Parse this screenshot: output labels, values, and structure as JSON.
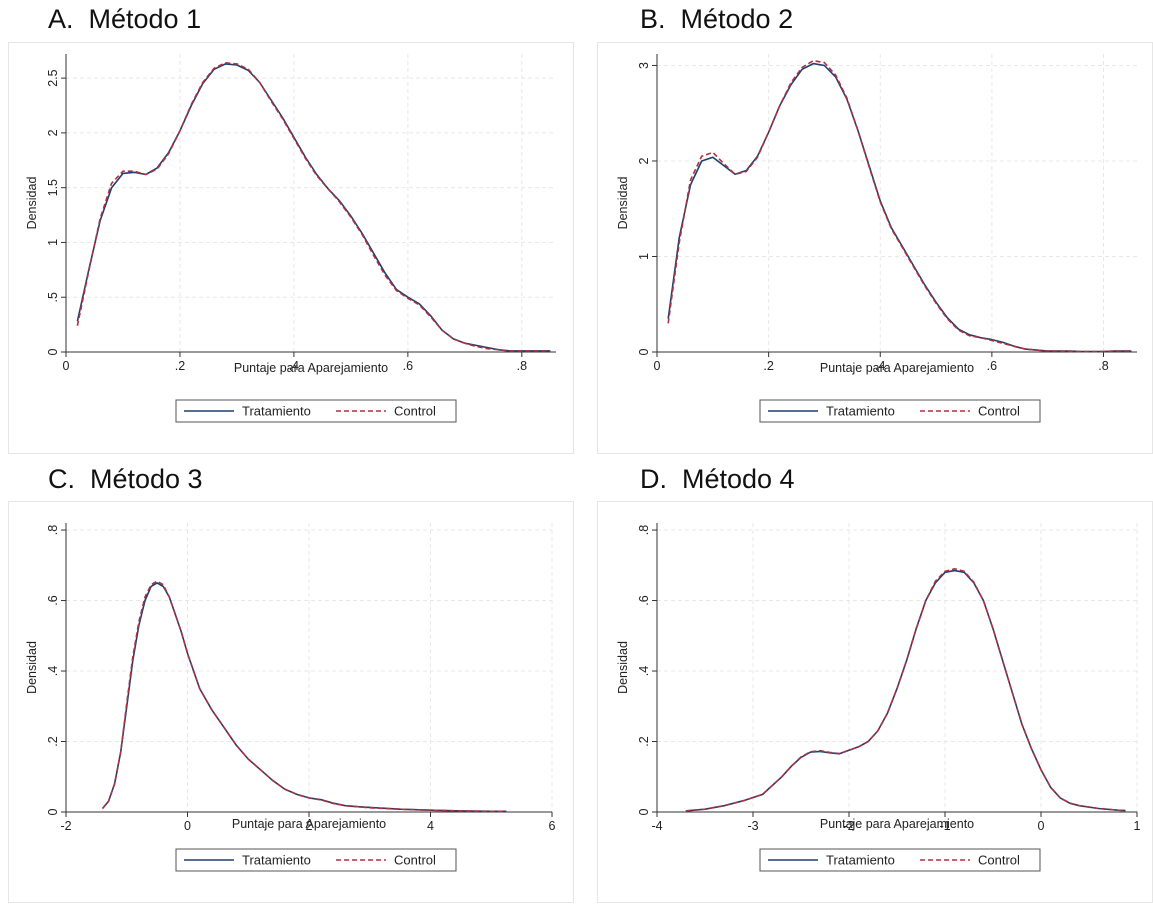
{
  "colors": {
    "treatment": "#1f3f6e",
    "control": "#b0303f"
  },
  "chart_data": [
    {
      "type": "line",
      "title": "A.  Método 1",
      "xlabel": "Puntaje para Aparejamiento",
      "ylabel": "Densidad",
      "xlim": [
        0,
        0.86
      ],
      "ylim": [
        0,
        2.72
      ],
      "xticks": [
        0,
        0.2,
        0.4,
        0.6,
        0.8
      ],
      "xtick_labels": [
        "0",
        ".2",
        ".4",
        ".6",
        ".8"
      ],
      "yticks": [
        0,
        0.5,
        1,
        1.5,
        2,
        2.5
      ],
      "ytick_labels": [
        "0",
        ".5",
        "1",
        "1.5",
        "2",
        "2.5"
      ],
      "grid": true,
      "legend": "bottom",
      "series": [
        {
          "name": "Tratamiento",
          "style": "solid",
          "x": [
            0.02,
            0.04,
            0.06,
            0.08,
            0.1,
            0.12,
            0.14,
            0.16,
            0.18,
            0.2,
            0.22,
            0.24,
            0.26,
            0.28,
            0.3,
            0.32,
            0.34,
            0.36,
            0.38,
            0.4,
            0.42,
            0.44,
            0.46,
            0.48,
            0.5,
            0.52,
            0.54,
            0.56,
            0.58,
            0.6,
            0.62,
            0.64,
            0.66,
            0.68,
            0.7,
            0.72,
            0.74,
            0.76,
            0.78,
            0.8,
            0.82,
            0.85
          ],
          "y": [
            0.28,
            0.75,
            1.2,
            1.5,
            1.63,
            1.64,
            1.62,
            1.68,
            1.82,
            2.02,
            2.25,
            2.45,
            2.58,
            2.63,
            2.62,
            2.57,
            2.46,
            2.3,
            2.14,
            1.96,
            1.78,
            1.62,
            1.49,
            1.38,
            1.24,
            1.08,
            0.9,
            0.72,
            0.57,
            0.5,
            0.44,
            0.33,
            0.2,
            0.12,
            0.08,
            0.06,
            0.04,
            0.02,
            0.01,
            0.01,
            0.01,
            0.01
          ]
        },
        {
          "name": "Control",
          "style": "dashed",
          "x": [
            0.02,
            0.04,
            0.06,
            0.08,
            0.1,
            0.12,
            0.14,
            0.16,
            0.18,
            0.2,
            0.22,
            0.24,
            0.26,
            0.28,
            0.3,
            0.32,
            0.34,
            0.36,
            0.38,
            0.4,
            0.42,
            0.44,
            0.46,
            0.48,
            0.5,
            0.52,
            0.54,
            0.56,
            0.58,
            0.6,
            0.62,
            0.64,
            0.66,
            0.68,
            0.7,
            0.72,
            0.74,
            0.76,
            0.78,
            0.8,
            0.82,
            0.85
          ],
          "y": [
            0.24,
            0.74,
            1.22,
            1.54,
            1.65,
            1.65,
            1.62,
            1.67,
            1.81,
            2.02,
            2.26,
            2.46,
            2.59,
            2.64,
            2.63,
            2.58,
            2.46,
            2.29,
            2.13,
            1.95,
            1.77,
            1.61,
            1.49,
            1.37,
            1.23,
            1.07,
            0.88,
            0.7,
            0.56,
            0.49,
            0.43,
            0.32,
            0.2,
            0.12,
            0.08,
            0.05,
            0.03,
            0.02,
            0.01,
            0.01,
            0.01,
            0.01
          ]
        }
      ]
    },
    {
      "type": "line",
      "title": "B.  Método 2",
      "xlabel": "Puntaje para Aparejamiento",
      "ylabel": "Densidad",
      "xlim": [
        0,
        0.86
      ],
      "ylim": [
        0,
        3.12
      ],
      "xticks": [
        0,
        0.2,
        0.4,
        0.6,
        0.8
      ],
      "xtick_labels": [
        "0",
        ".2",
        ".4",
        ".6",
        ".8"
      ],
      "yticks": [
        0,
        1,
        2,
        3
      ],
      "ytick_labels": [
        "0",
        "1",
        "2",
        "3"
      ],
      "grid": true,
      "legend": "bottom",
      "series": [
        {
          "name": "Tratamiento",
          "style": "solid",
          "x": [
            0.02,
            0.04,
            0.06,
            0.08,
            0.1,
            0.12,
            0.14,
            0.16,
            0.18,
            0.2,
            0.22,
            0.24,
            0.26,
            0.28,
            0.3,
            0.32,
            0.34,
            0.36,
            0.38,
            0.4,
            0.42,
            0.44,
            0.46,
            0.48,
            0.5,
            0.52,
            0.54,
            0.56,
            0.58,
            0.6,
            0.62,
            0.64,
            0.66,
            0.68,
            0.7,
            0.72,
            0.74,
            0.76,
            0.78,
            0.8,
            0.82,
            0.85
          ],
          "y": [
            0.35,
            1.2,
            1.75,
            2.0,
            2.04,
            1.95,
            1.86,
            1.9,
            2.05,
            2.3,
            2.58,
            2.8,
            2.96,
            3.02,
            3.0,
            2.88,
            2.65,
            2.32,
            1.95,
            1.58,
            1.3,
            1.1,
            0.9,
            0.7,
            0.52,
            0.36,
            0.24,
            0.18,
            0.15,
            0.13,
            0.1,
            0.06,
            0.03,
            0.02,
            0.01,
            0.01,
            0.01,
            0.005,
            0.005,
            0.005,
            0.01,
            0.01
          ]
        },
        {
          "name": "Control",
          "style": "dashed",
          "x": [
            0.02,
            0.04,
            0.06,
            0.08,
            0.1,
            0.12,
            0.14,
            0.16,
            0.18,
            0.2,
            0.22,
            0.24,
            0.26,
            0.28,
            0.3,
            0.32,
            0.34,
            0.36,
            0.38,
            0.4,
            0.42,
            0.44,
            0.46,
            0.48,
            0.5,
            0.52,
            0.54,
            0.56,
            0.58,
            0.6,
            0.62,
            0.64,
            0.66,
            0.68,
            0.7,
            0.72,
            0.74,
            0.76,
            0.78,
            0.8,
            0.82,
            0.85
          ],
          "y": [
            0.3,
            1.15,
            1.8,
            2.05,
            2.09,
            1.97,
            1.86,
            1.89,
            2.04,
            2.3,
            2.58,
            2.82,
            2.98,
            3.05,
            3.03,
            2.9,
            2.66,
            2.32,
            1.94,
            1.57,
            1.29,
            1.09,
            0.89,
            0.69,
            0.51,
            0.35,
            0.23,
            0.17,
            0.15,
            0.12,
            0.09,
            0.06,
            0.03,
            0.02,
            0.01,
            0.01,
            0.005,
            0.005,
            0.005,
            0.005,
            0.01,
            0.01
          ]
        }
      ]
    },
    {
      "type": "line",
      "title": "C.  Método 3",
      "xlabel": "Puntaje para Aparejamiento",
      "ylabel": "Densidad",
      "xlim": [
        -2,
        6
      ],
      "ylim": [
        0,
        0.82
      ],
      "xticks": [
        -2,
        0,
        2,
        4,
        6
      ],
      "xtick_labels": [
        "-2",
        "0",
        "2",
        "4",
        "6"
      ],
      "yticks": [
        0,
        0.2,
        0.4,
        0.6,
        0.8
      ],
      "ytick_labels": [
        "0",
        ".2",
        ".4",
        ".6",
        ".8"
      ],
      "grid": true,
      "legend": "bottom",
      "series": [
        {
          "name": "Tratamiento",
          "style": "solid",
          "x": [
            -1.4,
            -1.3,
            -1.2,
            -1.1,
            -1.0,
            -0.9,
            -0.8,
            -0.7,
            -0.6,
            -0.5,
            -0.4,
            -0.3,
            -0.2,
            -0.1,
            0.0,
            0.2,
            0.4,
            0.6,
            0.8,
            1.0,
            1.2,
            1.4,
            1.6,
            1.8,
            2.0,
            2.2,
            2.4,
            2.6,
            2.8,
            3.0,
            3.5,
            4.0,
            4.5,
            5.0,
            5.25
          ],
          "y": [
            0.01,
            0.03,
            0.08,
            0.17,
            0.3,
            0.43,
            0.53,
            0.6,
            0.64,
            0.65,
            0.64,
            0.61,
            0.56,
            0.51,
            0.45,
            0.35,
            0.29,
            0.24,
            0.19,
            0.15,
            0.12,
            0.09,
            0.065,
            0.05,
            0.04,
            0.035,
            0.025,
            0.018,
            0.015,
            0.013,
            0.008,
            0.005,
            0.003,
            0.002,
            0.002
          ]
        },
        {
          "name": "Control",
          "style": "dashed",
          "x": [
            -1.4,
            -1.3,
            -1.2,
            -1.1,
            -1.0,
            -0.9,
            -0.8,
            -0.7,
            -0.6,
            -0.5,
            -0.4,
            -0.3,
            -0.2,
            -0.1,
            0.0,
            0.2,
            0.4,
            0.6,
            0.8,
            1.0,
            1.2,
            1.4,
            1.6,
            1.8,
            2.0,
            2.2,
            2.4,
            2.6,
            2.8,
            3.0,
            3.5,
            4.0,
            4.5,
            5.0,
            5.25
          ],
          "y": [
            0.01,
            0.03,
            0.08,
            0.17,
            0.31,
            0.44,
            0.54,
            0.61,
            0.645,
            0.655,
            0.645,
            0.61,
            0.56,
            0.51,
            0.45,
            0.35,
            0.29,
            0.24,
            0.19,
            0.15,
            0.12,
            0.09,
            0.065,
            0.05,
            0.04,
            0.034,
            0.024,
            0.018,
            0.015,
            0.012,
            0.008,
            0.005,
            0.003,
            0.002,
            0.002
          ]
        }
      ]
    },
    {
      "type": "line",
      "title": "D.  Método 4",
      "xlabel": "Puntaje para Aparejamiento",
      "ylabel": "Densidad",
      "xlim": [
        -4,
        1
      ],
      "ylim": [
        0,
        0.82
      ],
      "xticks": [
        -4,
        -3,
        -2,
        -1,
        0,
        1
      ],
      "xtick_labels": [
        "-4",
        "-3",
        "-2",
        "-1",
        "0",
        "1"
      ],
      "yticks": [
        0,
        0.2,
        0.4,
        0.6,
        0.8
      ],
      "ytick_labels": [
        "0",
        ".2",
        ".4",
        ".6",
        ".8"
      ],
      "grid": true,
      "legend": "bottom",
      "series": [
        {
          "name": "Tratamiento",
          "style": "solid",
          "x": [
            -3.7,
            -3.5,
            -3.3,
            -3.1,
            -2.9,
            -2.7,
            -2.6,
            -2.5,
            -2.4,
            -2.3,
            -2.2,
            -2.1,
            -2.0,
            -1.9,
            -1.8,
            -1.7,
            -1.6,
            -1.5,
            -1.4,
            -1.3,
            -1.2,
            -1.1,
            -1.0,
            -0.9,
            -0.8,
            -0.7,
            -0.6,
            -0.5,
            -0.4,
            -0.3,
            -0.2,
            -0.1,
            0.0,
            0.1,
            0.2,
            0.3,
            0.4,
            0.6,
            0.8,
            0.88
          ],
          "y": [
            0.003,
            0.008,
            0.018,
            0.032,
            0.05,
            0.1,
            0.13,
            0.155,
            0.17,
            0.172,
            0.168,
            0.165,
            0.175,
            0.185,
            0.2,
            0.23,
            0.28,
            0.35,
            0.43,
            0.52,
            0.6,
            0.65,
            0.68,
            0.685,
            0.68,
            0.65,
            0.6,
            0.52,
            0.43,
            0.34,
            0.25,
            0.18,
            0.12,
            0.07,
            0.04,
            0.025,
            0.018,
            0.01,
            0.005,
            0.004
          ]
        },
        {
          "name": "Control",
          "style": "dashed",
          "x": [
            -3.7,
            -3.5,
            -3.3,
            -3.1,
            -2.9,
            -2.7,
            -2.6,
            -2.5,
            -2.4,
            -2.3,
            -2.2,
            -2.1,
            -2.0,
            -1.9,
            -1.8,
            -1.7,
            -1.6,
            -1.5,
            -1.4,
            -1.3,
            -1.2,
            -1.1,
            -1.0,
            -0.9,
            -0.8,
            -0.7,
            -0.6,
            -0.5,
            -0.4,
            -0.3,
            -0.2,
            -0.1,
            0.0,
            0.1,
            0.2,
            0.3,
            0.4,
            0.6,
            0.8,
            0.88
          ],
          "y": [
            0.003,
            0.008,
            0.018,
            0.032,
            0.05,
            0.1,
            0.13,
            0.156,
            0.171,
            0.174,
            0.169,
            0.166,
            0.175,
            0.185,
            0.2,
            0.23,
            0.28,
            0.35,
            0.43,
            0.52,
            0.6,
            0.655,
            0.683,
            0.69,
            0.683,
            0.652,
            0.6,
            0.52,
            0.43,
            0.34,
            0.25,
            0.18,
            0.12,
            0.07,
            0.04,
            0.025,
            0.018,
            0.01,
            0.005,
            0.004
          ]
        }
      ]
    }
  ]
}
